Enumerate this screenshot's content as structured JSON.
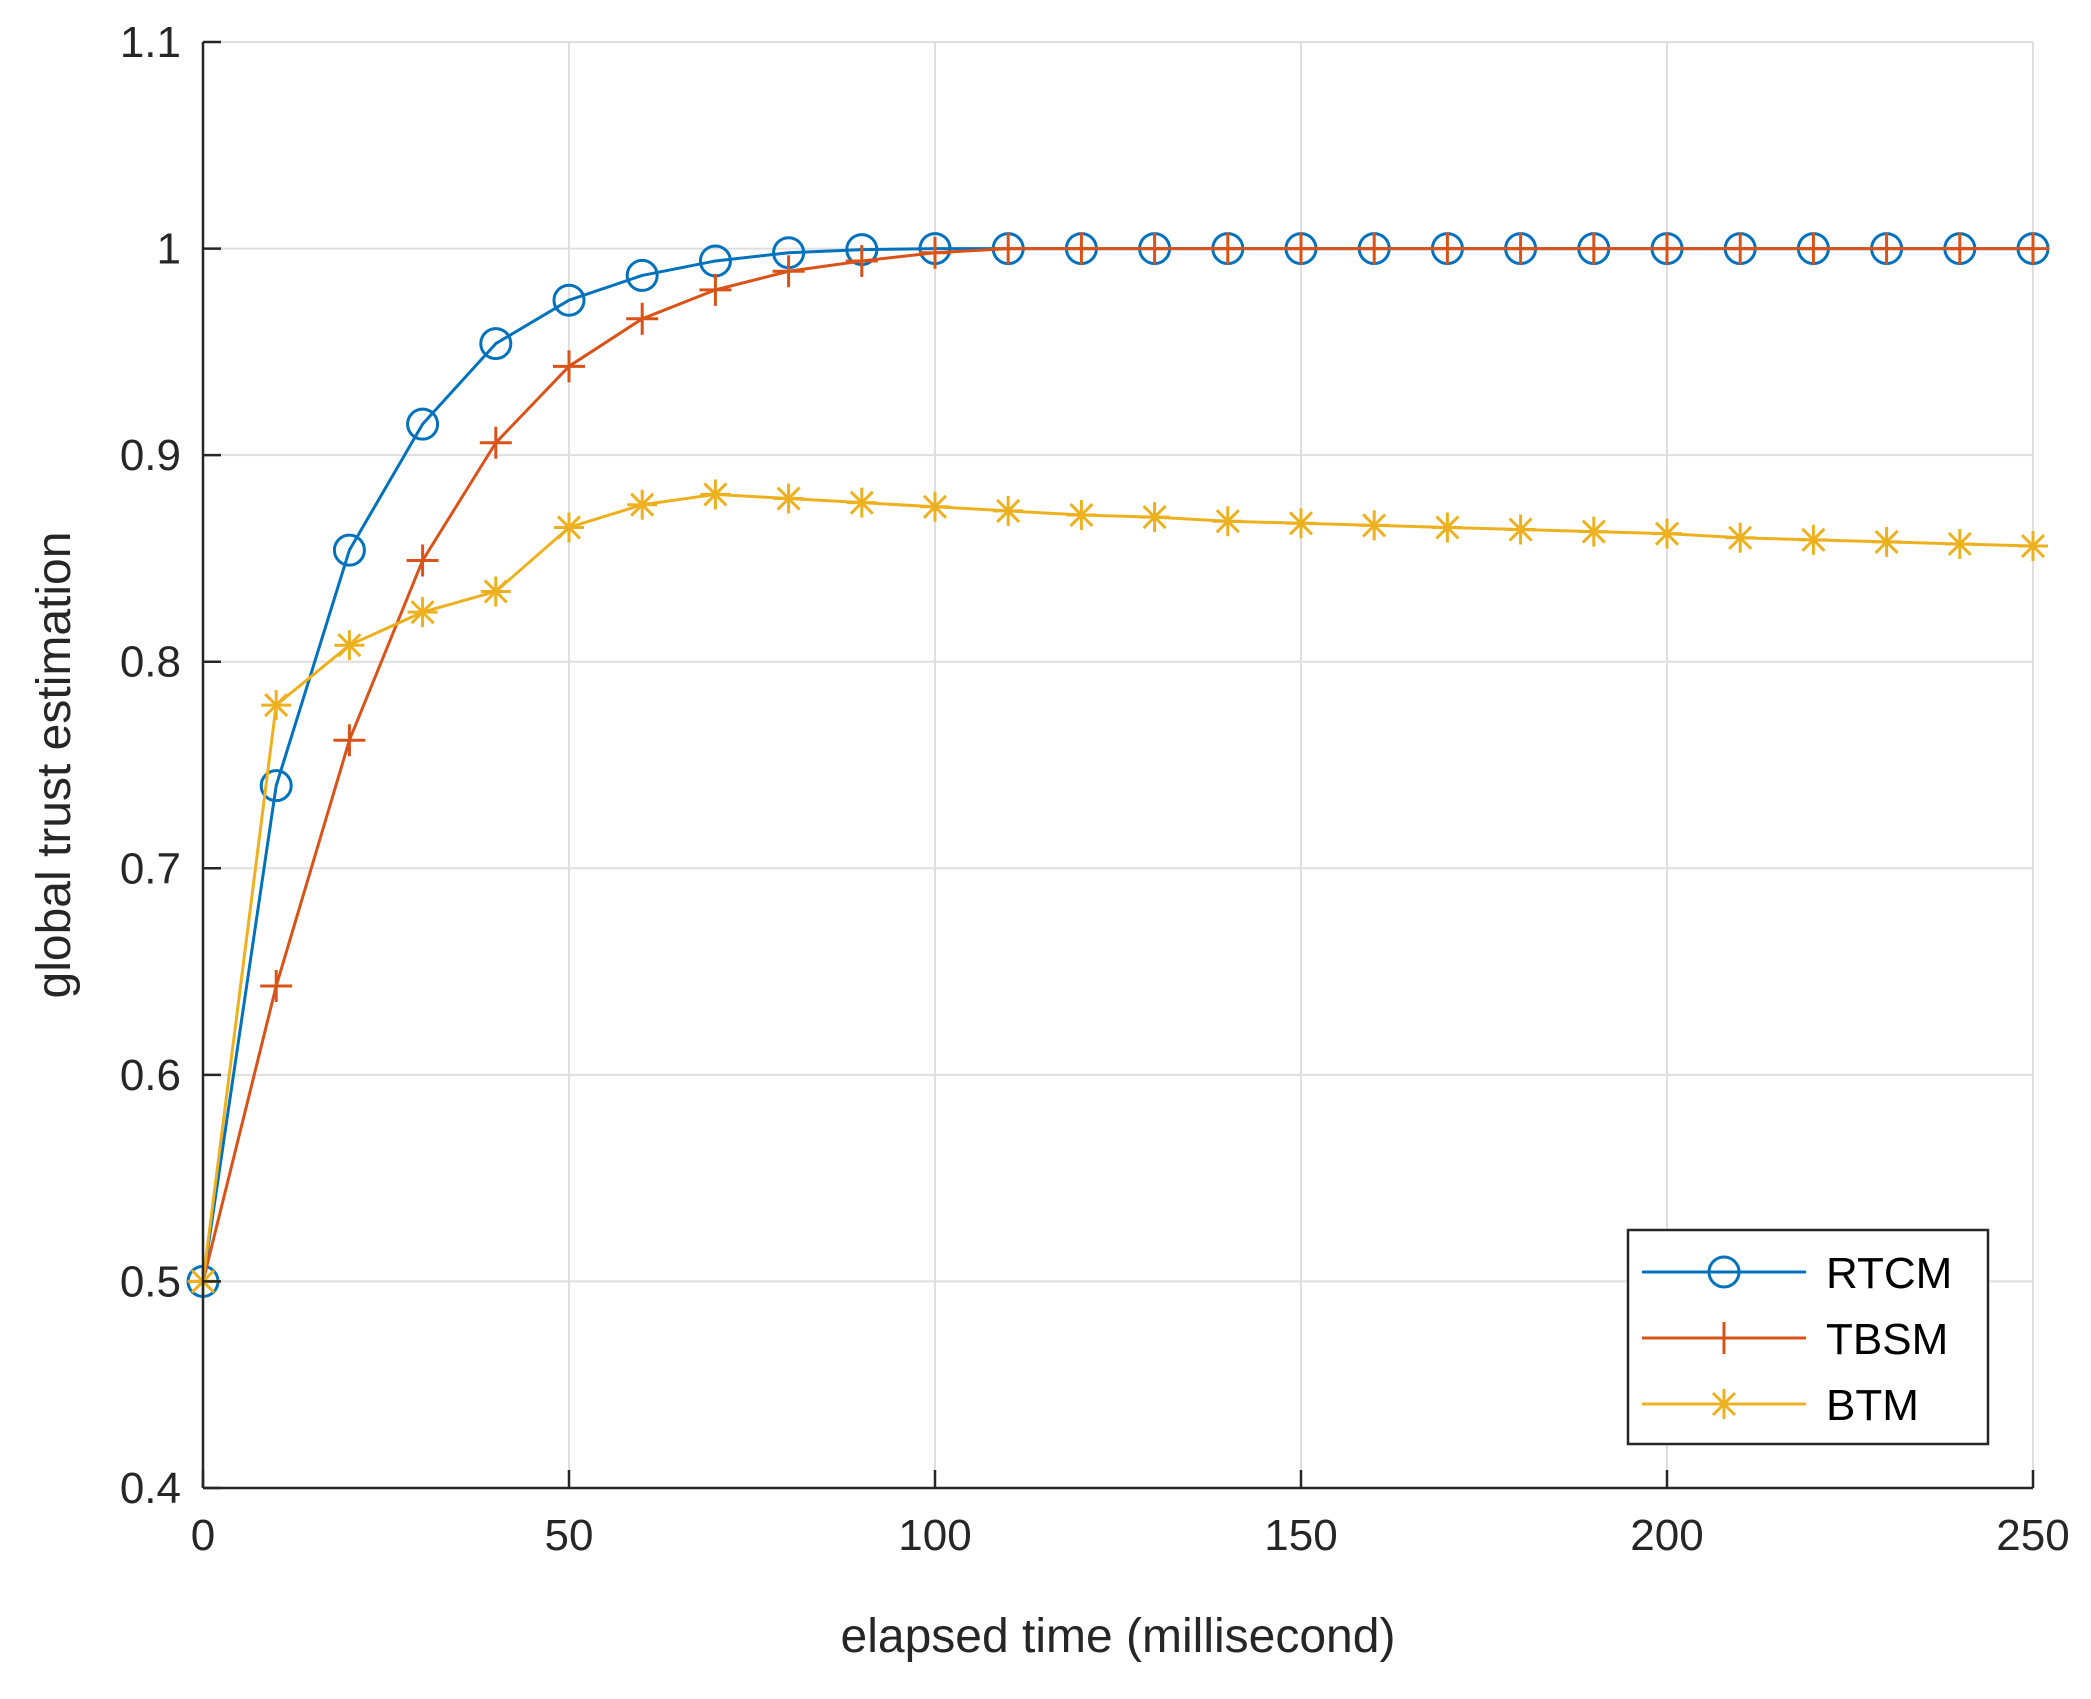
{
  "chart_data": {
    "type": "line",
    "title": "",
    "xlabel": "elapsed time (millisecond)",
    "ylabel": "global trust estimation",
    "xlim": [
      0,
      250
    ],
    "ylim": [
      0.4,
      1.1
    ],
    "xticks": [
      0,
      50,
      100,
      150,
      200,
      250
    ],
    "xtick_labels": [
      "0",
      "50",
      "100",
      "150",
      "200",
      "250"
    ],
    "yticks": [
      0.4,
      0.5,
      0.6,
      0.7,
      0.8,
      0.9,
      1.0,
      1.1
    ],
    "ytick_labels": [
      "0.4",
      "0.5",
      "0.6",
      "0.7",
      "0.8",
      "0.9",
      "1",
      "1.1"
    ],
    "grid": true,
    "legend_position": "bottom-right",
    "x": [
      0,
      10,
      20,
      30,
      40,
      50,
      60,
      70,
      80,
      90,
      100,
      110,
      120,
      130,
      140,
      150,
      160,
      170,
      180,
      190,
      200,
      210,
      220,
      230,
      240,
      250
    ],
    "series": [
      {
        "name": "RTCM",
        "color": "#0072BD",
        "marker": "circle",
        "values": [
          0.5,
          0.74,
          0.854,
          0.915,
          0.954,
          0.975,
          0.987,
          0.994,
          0.998,
          0.9995,
          1.0,
          1.0,
          1.0,
          1.0,
          1.0,
          1.0,
          1.0,
          1.0,
          1.0,
          1.0,
          1.0,
          1.0,
          1.0,
          1.0,
          1.0,
          1.0
        ]
      },
      {
        "name": "TBSM",
        "color": "#D95319",
        "marker": "plus",
        "values": [
          0.5,
          0.643,
          0.762,
          0.849,
          0.906,
          0.943,
          0.966,
          0.98,
          0.989,
          0.994,
          0.998,
          1.0,
          1.0,
          1.0,
          1.0,
          1.0,
          1.0,
          1.0,
          1.0,
          1.0,
          1.0,
          1.0,
          1.0,
          1.0,
          1.0,
          1.0
        ]
      },
      {
        "name": "BTM",
        "color": "#EDB120",
        "marker": "asterisk",
        "values": [
          0.5,
          0.779,
          0.808,
          0.824,
          0.834,
          0.865,
          0.876,
          0.881,
          0.879,
          0.877,
          0.875,
          0.873,
          0.871,
          0.87,
          0.868,
          0.867,
          0.866,
          0.865,
          0.864,
          0.863,
          0.862,
          0.86,
          0.859,
          0.858,
          0.857,
          0.856
        ]
      }
    ]
  }
}
